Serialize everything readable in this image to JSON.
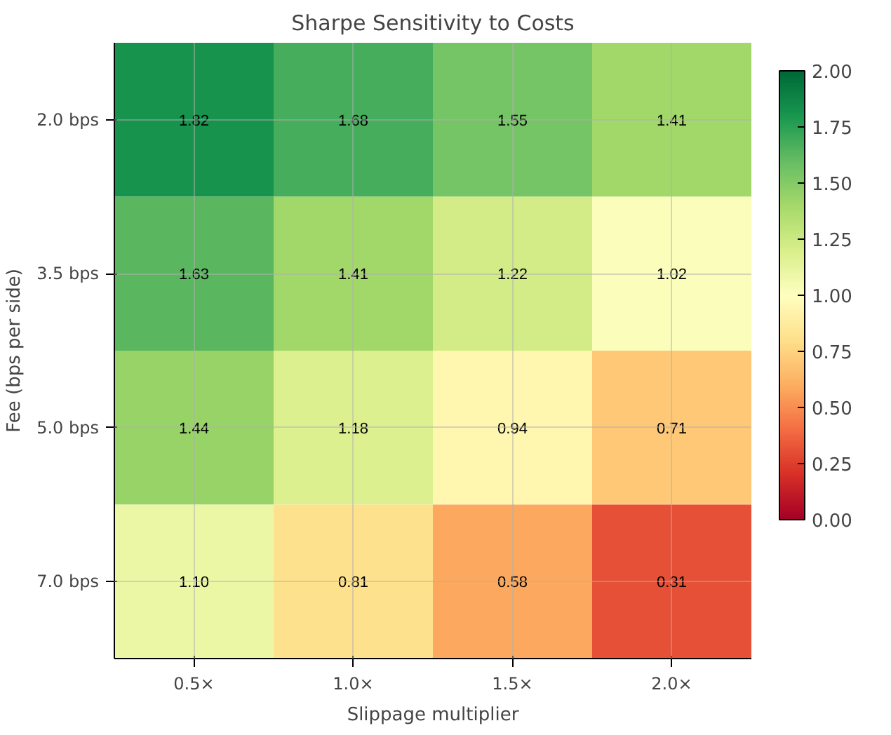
{
  "chart_data": {
    "type": "heatmap",
    "title": "Sharpe Sensitivity to Costs",
    "xlabel": "Slippage multiplier",
    "ylabel": "Fee (bps per side)",
    "categories": [
      "0.5×",
      "1.0×",
      "1.5×",
      "2.0×"
    ],
    "y_categories": [
      "2.0 bps",
      "3.5 bps",
      "5.0 bps",
      "7.0 bps"
    ],
    "cells": [
      [
        1.82,
        1.68,
        1.55,
        1.41
      ],
      [
        1.63,
        1.41,
        1.22,
        1.02
      ],
      [
        1.44,
        1.18,
        0.94,
        0.71
      ],
      [
        1.1,
        0.81,
        0.58,
        0.31
      ]
    ],
    "cell_labels": [
      [
        "1.82",
        "1.68",
        "1.55",
        "1.41"
      ],
      [
        "1.63",
        "1.41",
        "1.22",
        "1.02"
      ],
      [
        "1.44",
        "1.18",
        "0.94",
        "0.71"
      ],
      [
        "1.10",
        "0.81",
        "0.58",
        "0.31"
      ]
    ],
    "clim": [
      0,
      2
    ],
    "cticks": [
      {
        "value": 0,
        "label": "0.00"
      },
      {
        "value": 0.25,
        "label": "0.25"
      },
      {
        "value": 0.5,
        "label": "0.50"
      },
      {
        "value": 0.75,
        "label": "0.75"
      },
      {
        "value": 1,
        "label": "1.00"
      },
      {
        "value": 1.25,
        "label": "1.25"
      },
      {
        "value": 1.5,
        "label": "1.50"
      },
      {
        "value": 1.75,
        "label": "1.75"
      },
      {
        "value": 2,
        "label": "2.00"
      }
    ],
    "grid": true
  }
}
